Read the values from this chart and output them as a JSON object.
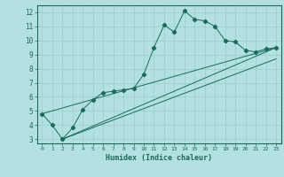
{
  "xlabel": "Humidex (Indice chaleur)",
  "background_color": "#b3e0e0",
  "grid_color": "#99cccc",
  "line_color": "#1a6b5a",
  "xlim": [
    -0.5,
    23.5
  ],
  "ylim": [
    2.7,
    12.5
  ],
  "xticks": [
    0,
    1,
    2,
    3,
    4,
    5,
    6,
    7,
    8,
    9,
    10,
    11,
    12,
    13,
    14,
    15,
    16,
    17,
    18,
    19,
    20,
    21,
    22,
    23
  ],
  "yticks": [
    3,
    4,
    5,
    6,
    7,
    8,
    9,
    10,
    11,
    12
  ],
  "series": [
    [
      0,
      4.8
    ],
    [
      1,
      4.0
    ],
    [
      2,
      3.0
    ],
    [
      3,
      3.8
    ],
    [
      4,
      5.1
    ],
    [
      5,
      5.8
    ],
    [
      6,
      6.3
    ],
    [
      7,
      6.4
    ],
    [
      8,
      6.5
    ],
    [
      9,
      6.6
    ],
    [
      10,
      7.6
    ],
    [
      11,
      9.5
    ],
    [
      12,
      11.1
    ],
    [
      13,
      10.6
    ],
    [
      14,
      12.1
    ],
    [
      15,
      11.5
    ],
    [
      16,
      11.4
    ],
    [
      17,
      11.0
    ],
    [
      18,
      10.0
    ],
    [
      19,
      9.9
    ],
    [
      20,
      9.3
    ],
    [
      21,
      9.2
    ],
    [
      22,
      9.4
    ],
    [
      23,
      9.5
    ]
  ],
  "line2": [
    [
      0,
      4.8
    ],
    [
      23,
      9.5
    ]
  ],
  "line3": [
    [
      2,
      3.0
    ],
    [
      23,
      9.5
    ]
  ],
  "line4": [
    [
      2,
      3.0
    ],
    [
      23,
      8.7
    ]
  ]
}
